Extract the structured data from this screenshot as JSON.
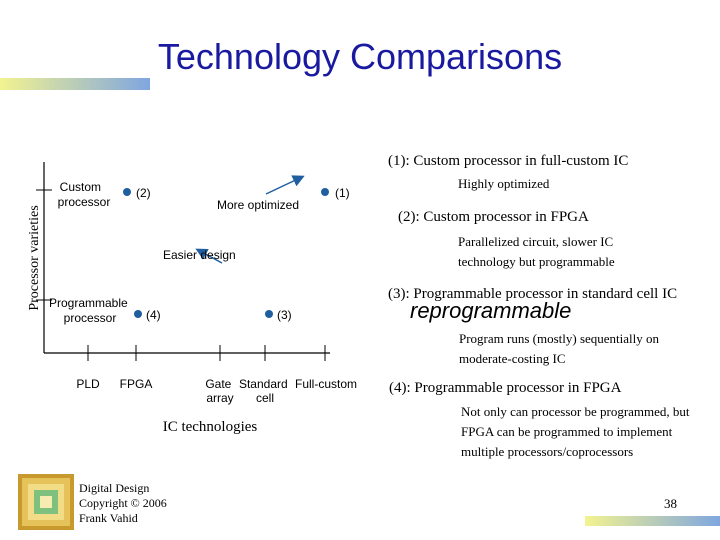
{
  "slide": {
    "title": "Technology Comparisons",
    "page_number": "38"
  },
  "footer": {
    "lines": [
      "Digital Design",
      "Copyright © 2006",
      "Frank Vahid"
    ]
  },
  "chart": {
    "y_axis_label": "Processor varieties",
    "x_axis_label": "IC technologies",
    "y_ticks": [
      {
        "label": [
          "Custom",
          "processor"
        ]
      },
      {
        "label": [
          "Programmable",
          "processor"
        ]
      }
    ],
    "x_ticks": [
      {
        "label": [
          "PLD"
        ]
      },
      {
        "label": [
          "FPGA"
        ]
      },
      {
        "label": [
          "Gate",
          "array"
        ]
      },
      {
        "label": [
          "Standard",
          "cell"
        ]
      },
      {
        "label": [
          "Full-custom"
        ]
      }
    ],
    "points": [
      {
        "label": "(1)"
      },
      {
        "label": "(2)"
      },
      {
        "label": "(3)"
      },
      {
        "label": "(4)"
      }
    ],
    "annotations": {
      "more_optimized": "More optimized",
      "easier_design": "Easier design"
    },
    "colors": {
      "point": "#1f5fa0",
      "arrow": "#1f5fa0"
    }
  },
  "legend": [
    {
      "heading": "(1): Custom processor in full-custom IC",
      "desc": "Highly optimized"
    },
    {
      "heading": "(2): Custom processor in FPGA",
      "desc": "Parallelized circuit, slower IC technology but programmable"
    },
    {
      "heading": "(3): Programmable processor in standard cell IC",
      "desc": "Program runs (mostly) sequentially on moderate-costing IC"
    },
    {
      "heading": "(4): Programmable processor in FPGA",
      "desc": "Not only can processor be programmed, but FPGA can be programmed to implement multiple processors/coprocessors"
    }
  ],
  "watermark": "reprogrammable"
}
